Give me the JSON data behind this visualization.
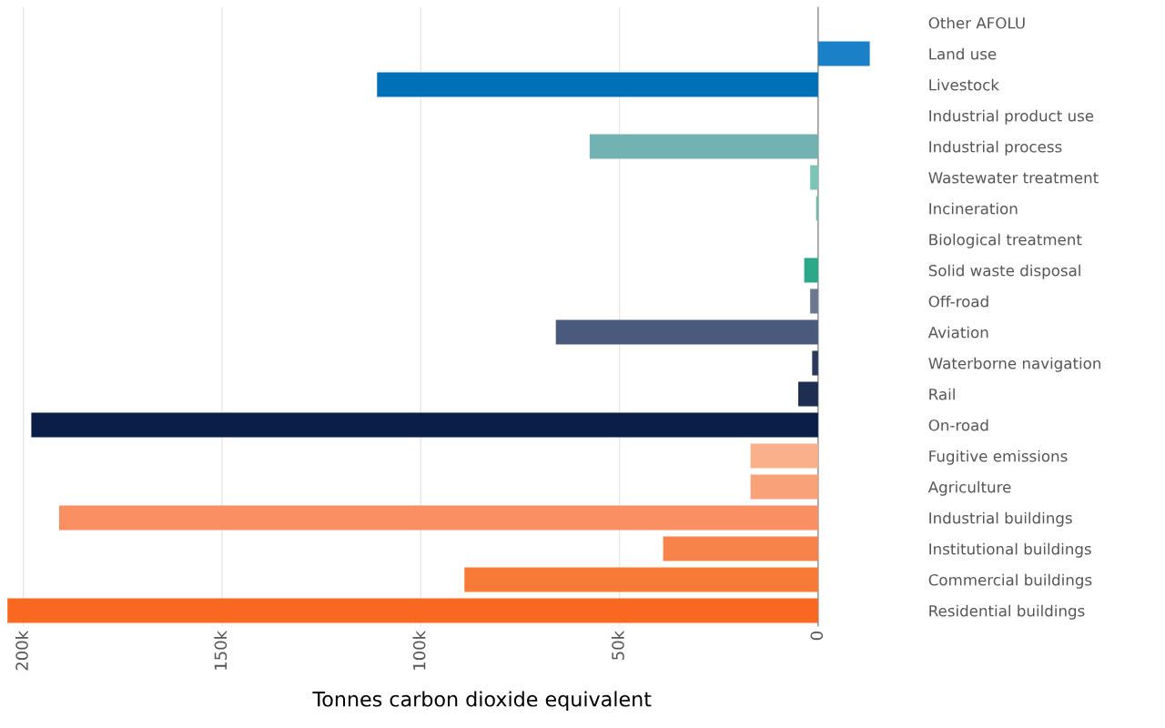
{
  "chart_data": {
    "type": "bar",
    "orientation": "horizontal",
    "xlabel": "Tonnes carbon dioxide equivalent",
    "categories": [
      "Other AFOLU",
      "Land use",
      "Livestock",
      "Industrial product use",
      "Industrial process",
      "Wastewater treatment",
      "Incineration",
      "Biological treatment",
      "Solid waste disposal",
      "Off-road",
      "Aviation",
      "Waterborne navigation",
      "Rail",
      "On-road",
      "Fugitive emissions",
      "Agriculture",
      "Industrial buildings",
      "Institutional buildings",
      "Commercial buildings",
      "Residential buildings"
    ],
    "values": [
      0,
      -13000,
      111000,
      0,
      57500,
      2000,
      500,
      0,
      3500,
      2000,
      66000,
      1500,
      5000,
      198000,
      17000,
      17000,
      191000,
      39000,
      89000,
      204000
    ],
    "colors": [
      "#1a80c8",
      "#1a80c8",
      "#0070b8",
      "#73b2b2",
      "#73b2b2",
      "#7cc4b4",
      "#6cbcaa",
      "#2aa888",
      "#2aa888",
      "#6b7890",
      "#4a5a7c",
      "#2a3a5c",
      "#1e2e50",
      "#0a1e48",
      "#fab08a",
      "#f9a27a",
      "#f98f63",
      "#f8834a",
      "#f77a36",
      "#f86820"
    ],
    "xlim": [
      205000,
      -14000
    ],
    "xticks": [
      {
        "value": 200000,
        "label": "200k"
      },
      {
        "value": 150000,
        "label": "150k"
      },
      {
        "value": 100000,
        "label": "100k"
      },
      {
        "value": 50000,
        "label": "50k"
      },
      0
    ],
    "grid": "x"
  }
}
